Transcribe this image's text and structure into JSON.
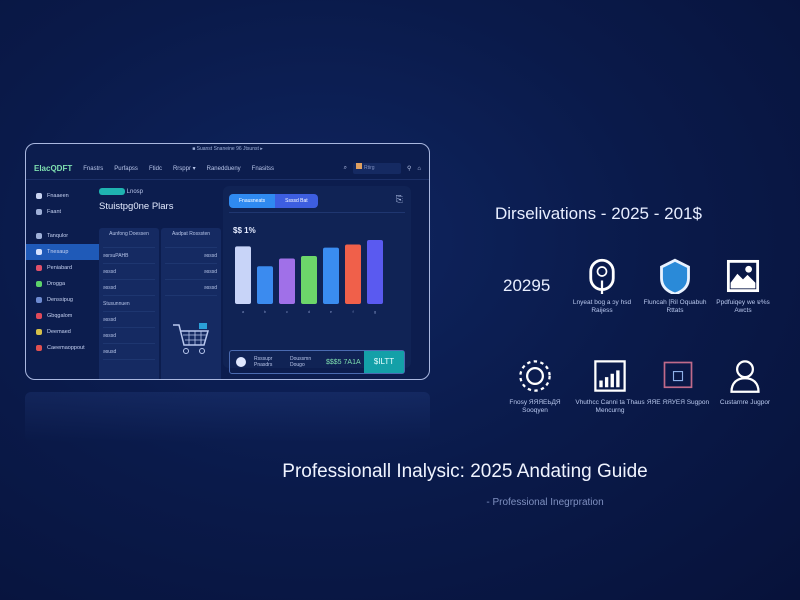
{
  "app": {
    "top_caption": "■ Suanst Snaneine 96 Jtsunst ▸",
    "logo": "ElacQDFT",
    "nav": [
      "Fnastrs",
      "Purfapss",
      "Ftidc",
      "Rrsppr ▾",
      "Raneddueny",
      "Fnasitss"
    ],
    "search_placeholder": "Rtirg"
  },
  "sidebar": {
    "items": [
      {
        "label": "Fnaaeen",
        "color": "#c9d4f2"
      },
      {
        "label": "Faant",
        "color": "#9fb0d8"
      },
      {
        "label": "Tanqulor",
        "color": "#9fb0d8"
      },
      {
        "label": "Tnesaup",
        "color": "#d6e2ff",
        "active": true
      },
      {
        "label": "Peniabard",
        "color": "#e0506a"
      },
      {
        "label": "Drogga",
        "color": "#5cd36a"
      },
      {
        "label": "Denssipug",
        "color": "#6d8ad0"
      },
      {
        "label": "Gbqgalom",
        "color": "#e04a5a"
      },
      {
        "label": "Deemaed",
        "color": "#d6c04a"
      },
      {
        "label": "Caeemaoppout",
        "color": "#e05050"
      }
    ]
  },
  "main": {
    "tag_label": "Lnosp",
    "title": "Stuistpg0ne Plars",
    "columns": [
      {
        "header": "Aunfong Doessen",
        "cells": [
          "ǝsrsuPAHB",
          "ǝsssd",
          "ǝsssd",
          "Stusunnuen",
          "ǝsssd",
          "ǝsssd",
          "ǝsusd"
        ]
      },
      {
        "header": "Aadpat Rosssten",
        "cells": [
          "ǝsssd",
          "ǝsssd",
          "ǝsssd"
        ]
      }
    ]
  },
  "chart": {
    "tabs": [
      "Fnausneats",
      "Ssssd Bat"
    ],
    "value_label": "$$ 1%",
    "summary_label1": "Rsssupr Pnasdrs",
    "summary_label2": "Doussmn Dougo",
    "summary_value": "$$$5 7A1A",
    "summary_button": "$ILTT"
  },
  "chart_data": {
    "type": "bar",
    "categories": [
      "a",
      "b",
      "c",
      "d",
      "e",
      "f",
      "g"
    ],
    "values": [
      0.9,
      0.59,
      0.71,
      0.75,
      0.88,
      0.93,
      1.0
    ],
    "colors": [
      "#c8d4f8",
      "#3b8bef",
      "#a070e8",
      "#6cd66a",
      "#3a8cf0",
      "#f0604a",
      "#5a5af0"
    ]
  },
  "right": {
    "heading": "Dirselivations  -  2025  -  201$",
    "big_number": "20295",
    "features": [
      {
        "icon": "lock-icon",
        "label": "Lnyeat bog a ɔy hsd Raijess"
      },
      {
        "icon": "shield-icon",
        "label": "Fluncah [Ril Oquabuh Rttats"
      },
      {
        "icon": "image-icon",
        "label": "Ppdfuiqey we ɐ%s Awcts"
      },
      {
        "icon": "gear-icon",
        "label": "Fnosy ЯЯЯЕЬДЯ Sooqyen"
      },
      {
        "icon": "growth-chart-icon",
        "label": "Vhuthcc Canni ta Thaus Mencurng"
      },
      {
        "icon": "puzzle-icon",
        "label": "ЯЯЕ ЯЯУЕЯ Sugpon"
      },
      {
        "icon": "user-icon",
        "label": "Custarnre Jugpor"
      }
    ]
  },
  "footer": {
    "title": "Professionall Inalysic:  2025  Andating Guide",
    "subtitle": "- Professional Inegrpration"
  }
}
